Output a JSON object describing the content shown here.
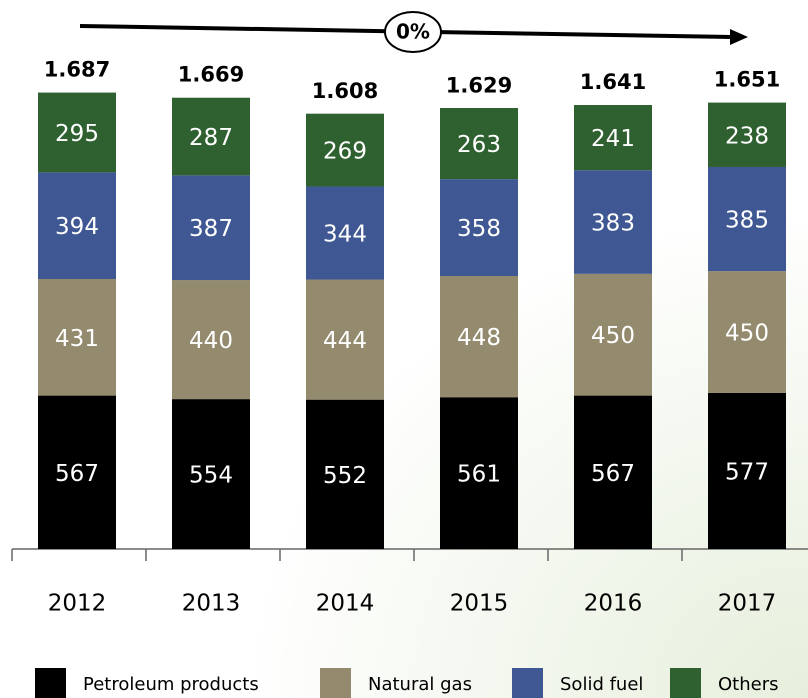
{
  "chart_data": {
    "type": "stacked_bar",
    "categories": [
      "2012",
      "2013",
      "2014",
      "2015",
      "2016",
      "2017"
    ],
    "series": [
      {
        "name": "Petroleum products",
        "color": "#000000",
        "values": [
          567,
          554,
          552,
          561,
          567,
          577
        ]
      },
      {
        "name": "Natural gas",
        "color": "#948a6e",
        "values": [
          431,
          440,
          444,
          448,
          450,
          450
        ]
      },
      {
        "name": "Solid fuel",
        "color": "#3f5893",
        "values": [
          394,
          387,
          344,
          358,
          383,
          385
        ]
      },
      {
        "name": "Others",
        "color": "#2f6130",
        "values": [
          295,
          287,
          269,
          263,
          241,
          238
        ]
      }
    ],
    "totals": {
      "values": [
        1687,
        1669,
        1608,
        1629,
        1641,
        1651
      ],
      "value_labels": [
        "1.687",
        "1.669",
        "1.608",
        "1.629",
        "1.641",
        "1.651"
      ]
    },
    "annotation": "0%",
    "ylim": [
      0,
      1800
    ]
  }
}
